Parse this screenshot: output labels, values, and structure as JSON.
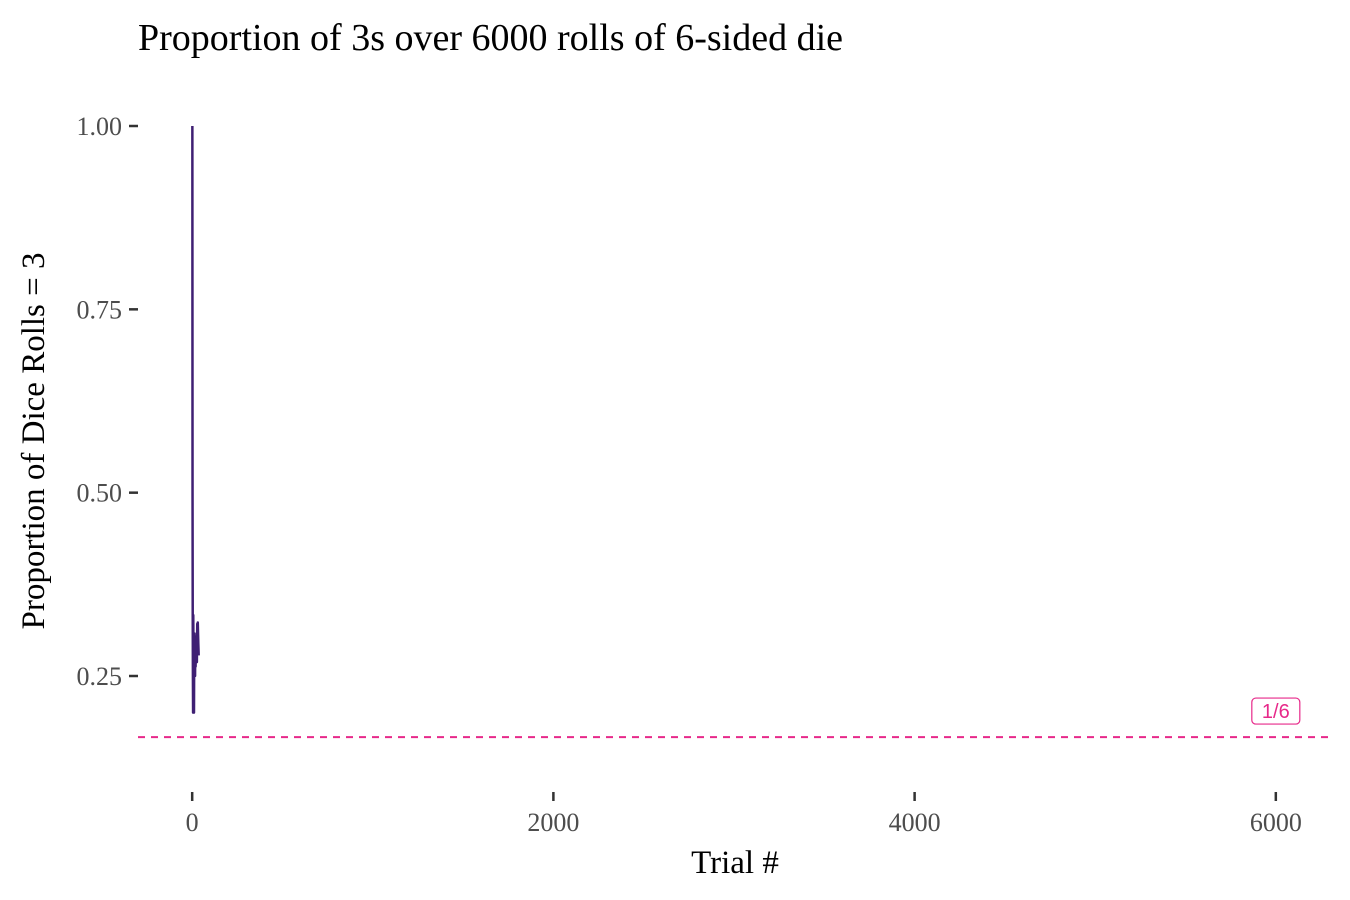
{
  "chart_data": {
    "type": "line",
    "title": "Proportion of 3s over 6000 rolls of 6-sided die",
    "xlabel": "Trial #",
    "ylabel": "Proportion of Dice Rolls = 3",
    "xlim": [
      -300,
      6300
    ],
    "ylim": [
      0.1,
      1.06
    ],
    "x_ticks": [
      0,
      2000,
      4000,
      6000
    ],
    "x_tick_labels": [
      "0",
      "2000",
      "4000",
      "6000"
    ],
    "y_ticks": [
      0.25,
      0.5,
      0.75,
      1.0
    ],
    "y_tick_labels": [
      "0.25",
      "0.50",
      "0.75",
      "1.00"
    ],
    "grid": false,
    "legend": "none",
    "series": [
      {
        "color": "#3f1f73",
        "x": [
          1,
          2,
          3,
          4,
          5,
          6,
          7,
          8,
          9,
          10,
          11,
          12,
          13,
          14,
          15,
          16,
          17,
          18,
          19,
          20,
          21,
          22,
          23,
          24,
          25,
          26,
          27,
          28,
          29,
          30,
          31,
          32,
          33,
          34,
          35,
          36
        ],
        "y": [
          1.0,
          0.5,
          0.333,
          0.25,
          0.2,
          0.333,
          0.286,
          0.25,
          0.222,
          0.2,
          0.273,
          0.25,
          0.308,
          0.286,
          0.267,
          0.25,
          0.294,
          0.278,
          0.263,
          0.3,
          0.286,
          0.273,
          0.304,
          0.292,
          0.28,
          0.269,
          0.296,
          0.321,
          0.31,
          0.3,
          0.323,
          0.313,
          0.303,
          0.294,
          0.286,
          0.278
        ]
      }
    ],
    "reference_line": {
      "y": 0.1667,
      "label": "1/6",
      "color": "#e7298a",
      "style": "dashed"
    }
  }
}
